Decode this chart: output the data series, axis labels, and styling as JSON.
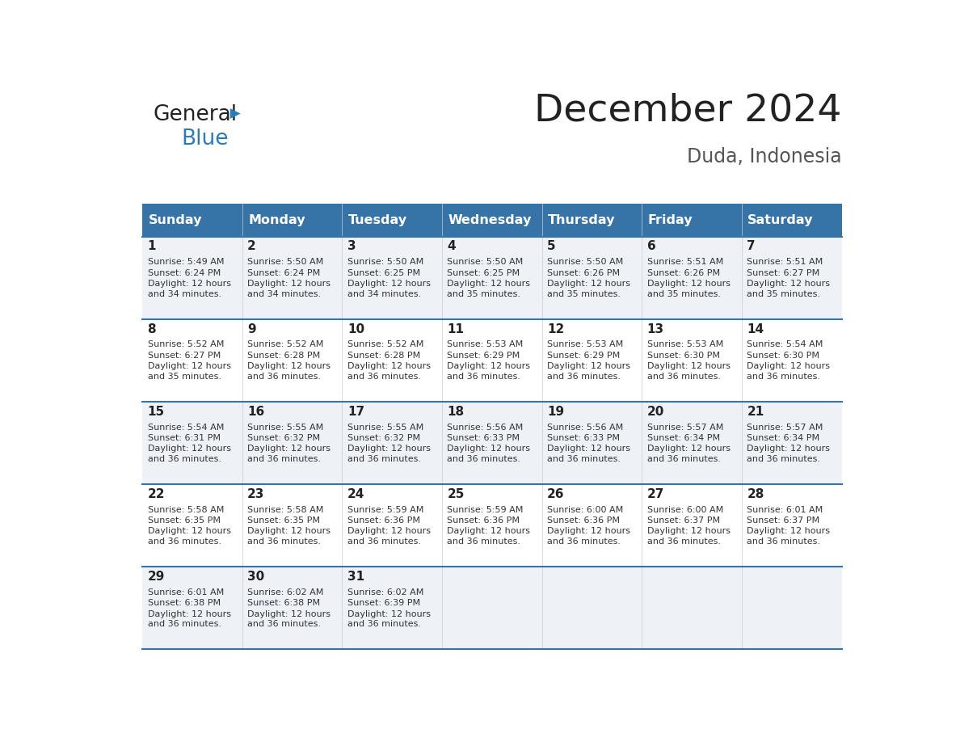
{
  "title": "December 2024",
  "subtitle": "Duda, Indonesia",
  "header_color": "#3674A8",
  "header_text_color": "#FFFFFF",
  "days_of_week": [
    "Sunday",
    "Monday",
    "Tuesday",
    "Wednesday",
    "Thursday",
    "Friday",
    "Saturday"
  ],
  "weeks": [
    [
      {
        "day": 1,
        "sunrise": "5:49 AM",
        "sunset": "6:24 PM",
        "daylight": "12 hours and 34 minutes."
      },
      {
        "day": 2,
        "sunrise": "5:50 AM",
        "sunset": "6:24 PM",
        "daylight": "12 hours and 34 minutes."
      },
      {
        "day": 3,
        "sunrise": "5:50 AM",
        "sunset": "6:25 PM",
        "daylight": "12 hours and 34 minutes."
      },
      {
        "day": 4,
        "sunrise": "5:50 AM",
        "sunset": "6:25 PM",
        "daylight": "12 hours and 35 minutes."
      },
      {
        "day": 5,
        "sunrise": "5:50 AM",
        "sunset": "6:26 PM",
        "daylight": "12 hours and 35 minutes."
      },
      {
        "day": 6,
        "sunrise": "5:51 AM",
        "sunset": "6:26 PM",
        "daylight": "12 hours and 35 minutes."
      },
      {
        "day": 7,
        "sunrise": "5:51 AM",
        "sunset": "6:27 PM",
        "daylight": "12 hours and 35 minutes."
      }
    ],
    [
      {
        "day": 8,
        "sunrise": "5:52 AM",
        "sunset": "6:27 PM",
        "daylight": "12 hours and 35 minutes."
      },
      {
        "day": 9,
        "sunrise": "5:52 AM",
        "sunset": "6:28 PM",
        "daylight": "12 hours and 36 minutes."
      },
      {
        "day": 10,
        "sunrise": "5:52 AM",
        "sunset": "6:28 PM",
        "daylight": "12 hours and 36 minutes."
      },
      {
        "day": 11,
        "sunrise": "5:53 AM",
        "sunset": "6:29 PM",
        "daylight": "12 hours and 36 minutes."
      },
      {
        "day": 12,
        "sunrise": "5:53 AM",
        "sunset": "6:29 PM",
        "daylight": "12 hours and 36 minutes."
      },
      {
        "day": 13,
        "sunrise": "5:53 AM",
        "sunset": "6:30 PM",
        "daylight": "12 hours and 36 minutes."
      },
      {
        "day": 14,
        "sunrise": "5:54 AM",
        "sunset": "6:30 PM",
        "daylight": "12 hours and 36 minutes."
      }
    ],
    [
      {
        "day": 15,
        "sunrise": "5:54 AM",
        "sunset": "6:31 PM",
        "daylight": "12 hours and 36 minutes."
      },
      {
        "day": 16,
        "sunrise": "5:55 AM",
        "sunset": "6:32 PM",
        "daylight": "12 hours and 36 minutes."
      },
      {
        "day": 17,
        "sunrise": "5:55 AM",
        "sunset": "6:32 PM",
        "daylight": "12 hours and 36 minutes."
      },
      {
        "day": 18,
        "sunrise": "5:56 AM",
        "sunset": "6:33 PM",
        "daylight": "12 hours and 36 minutes."
      },
      {
        "day": 19,
        "sunrise": "5:56 AM",
        "sunset": "6:33 PM",
        "daylight": "12 hours and 36 minutes."
      },
      {
        "day": 20,
        "sunrise": "5:57 AM",
        "sunset": "6:34 PM",
        "daylight": "12 hours and 36 minutes."
      },
      {
        "day": 21,
        "sunrise": "5:57 AM",
        "sunset": "6:34 PM",
        "daylight": "12 hours and 36 minutes."
      }
    ],
    [
      {
        "day": 22,
        "sunrise": "5:58 AM",
        "sunset": "6:35 PM",
        "daylight": "12 hours and 36 minutes."
      },
      {
        "day": 23,
        "sunrise": "5:58 AM",
        "sunset": "6:35 PM",
        "daylight": "12 hours and 36 minutes."
      },
      {
        "day": 24,
        "sunrise": "5:59 AM",
        "sunset": "6:36 PM",
        "daylight": "12 hours and 36 minutes."
      },
      {
        "day": 25,
        "sunrise": "5:59 AM",
        "sunset": "6:36 PM",
        "daylight": "12 hours and 36 minutes."
      },
      {
        "day": 26,
        "sunrise": "6:00 AM",
        "sunset": "6:36 PM",
        "daylight": "12 hours and 36 minutes."
      },
      {
        "day": 27,
        "sunrise": "6:00 AM",
        "sunset": "6:37 PM",
        "daylight": "12 hours and 36 minutes."
      },
      {
        "day": 28,
        "sunrise": "6:01 AM",
        "sunset": "6:37 PM",
        "daylight": "12 hours and 36 minutes."
      }
    ],
    [
      {
        "day": 29,
        "sunrise": "6:01 AM",
        "sunset": "6:38 PM",
        "daylight": "12 hours and 36 minutes."
      },
      {
        "day": 30,
        "sunrise": "6:02 AM",
        "sunset": "6:38 PM",
        "daylight": "12 hours and 36 minutes."
      },
      {
        "day": 31,
        "sunrise": "6:02 AM",
        "sunset": "6:39 PM",
        "daylight": "12 hours and 36 minutes."
      },
      null,
      null,
      null,
      null
    ]
  ],
  "row_bg_colors": [
    "#EEF2F7",
    "#FFFFFF"
  ],
  "cell_text_color": "#333333",
  "day_num_color": "#222222",
  "divider_color": "#3674A8",
  "background_color": "#FFFFFF",
  "logo_general_color": "#222222",
  "logo_blue_color": "#2B7BB9"
}
